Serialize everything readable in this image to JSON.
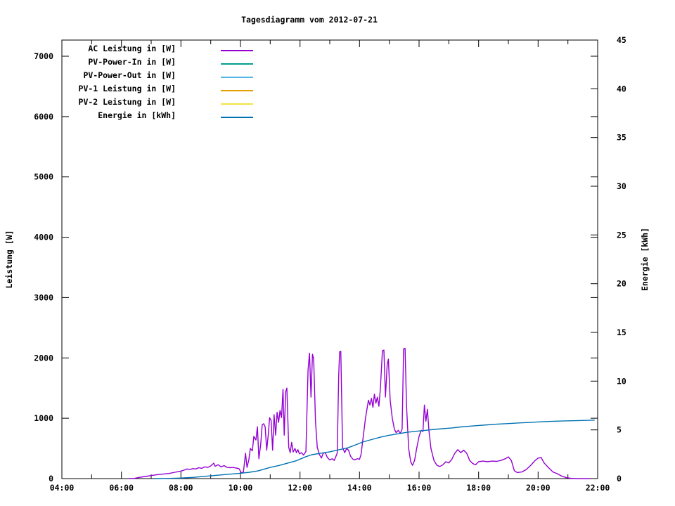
{
  "chart_data": {
    "type": "line",
    "title": "Tagesdiagramm vom 2012-07-21",
    "ylabel": "Leistung [W]",
    "y2label": "Energie [kWh]",
    "grid": false,
    "legend_position": "top-left-inside",
    "ylim": [
      0,
      7268
    ],
    "y2lim": [
      0,
      45
    ],
    "xlim_hours": [
      4,
      22
    ],
    "yticks": [
      0,
      1000,
      2000,
      3000,
      4000,
      5000,
      6000,
      7000
    ],
    "y2ticks": [
      0,
      5,
      10,
      15,
      20,
      25,
      30,
      35,
      40,
      45
    ],
    "xticks": [
      {
        "t": 4,
        "label": "04:00"
      },
      {
        "t": 6,
        "label": "06:00"
      },
      {
        "t": 8,
        "label": "08:00"
      },
      {
        "t": 10,
        "label": "10:00"
      },
      {
        "t": 12,
        "label": "12:00"
      },
      {
        "t": 14,
        "label": "14:00"
      },
      {
        "t": 16,
        "label": "16:00"
      },
      {
        "t": 18,
        "label": "18:00"
      },
      {
        "t": 20,
        "label": "20:00"
      },
      {
        "t": 22,
        "label": "22:00"
      }
    ],
    "xminor": [
      5,
      7,
      9,
      11,
      13,
      15,
      17,
      19,
      21
    ],
    "series": [
      {
        "name": "AC Leistung in [W]",
        "color": "#9400d3",
        "axis": "y1",
        "points": [
          [
            6.25,
            0
          ],
          [
            6.45,
            5
          ],
          [
            6.6,
            20
          ],
          [
            6.8,
            35
          ],
          [
            7.0,
            50
          ],
          [
            7.2,
            65
          ],
          [
            7.4,
            75
          ],
          [
            7.6,
            85
          ],
          [
            7.8,
            105
          ],
          [
            8.0,
            125
          ],
          [
            8.1,
            140
          ],
          [
            8.2,
            160
          ],
          [
            8.3,
            150
          ],
          [
            8.4,
            165
          ],
          [
            8.5,
            160
          ],
          [
            8.6,
            180
          ],
          [
            8.7,
            170
          ],
          [
            8.8,
            195
          ],
          [
            8.9,
            185
          ],
          [
            9.0,
            210
          ],
          [
            9.1,
            255
          ],
          [
            9.15,
            205
          ],
          [
            9.25,
            230
          ],
          [
            9.35,
            195
          ],
          [
            9.45,
            215
          ],
          [
            9.55,
            185
          ],
          [
            9.65,
            180
          ],
          [
            9.75,
            185
          ],
          [
            9.85,
            175
          ],
          [
            9.95,
            165
          ],
          [
            10.03,
            95
          ],
          [
            10.1,
            110
          ],
          [
            10.17,
            420
          ],
          [
            10.22,
            185
          ],
          [
            10.28,
            310
          ],
          [
            10.33,
            500
          ],
          [
            10.4,
            460
          ],
          [
            10.45,
            700
          ],
          [
            10.52,
            640
          ],
          [
            10.57,
            860
          ],
          [
            10.62,
            330
          ],
          [
            10.68,
            570
          ],
          [
            10.73,
            890
          ],
          [
            10.78,
            910
          ],
          [
            10.83,
            860
          ],
          [
            10.88,
            470
          ],
          [
            10.93,
            710
          ],
          [
            10.98,
            1010
          ],
          [
            11.03,
            960
          ],
          [
            11.08,
            470
          ],
          [
            11.13,
            1060
          ],
          [
            11.18,
            720
          ],
          [
            11.23,
            1100
          ],
          [
            11.28,
            930
          ],
          [
            11.33,
            1130
          ],
          [
            11.38,
            1010
          ],
          [
            11.43,
            1480
          ],
          [
            11.47,
            720
          ],
          [
            11.52,
            1440
          ],
          [
            11.56,
            1500
          ],
          [
            11.62,
            520
          ],
          [
            11.67,
            430
          ],
          [
            11.72,
            600
          ],
          [
            11.77,
            440
          ],
          [
            11.83,
            500
          ],
          [
            11.88,
            430
          ],
          [
            11.93,
            480
          ],
          [
            11.98,
            410
          ],
          [
            12.05,
            430
          ],
          [
            12.12,
            390
          ],
          [
            12.2,
            450
          ],
          [
            12.27,
            1800
          ],
          [
            12.32,
            2080
          ],
          [
            12.37,
            1350
          ],
          [
            12.42,
            2060
          ],
          [
            12.46,
            1990
          ],
          [
            12.52,
            950
          ],
          [
            12.58,
            520
          ],
          [
            12.65,
            400
          ],
          [
            12.72,
            340
          ],
          [
            12.78,
            420
          ],
          [
            12.85,
            430
          ],
          [
            12.92,
            350
          ],
          [
            13.0,
            310
          ],
          [
            13.08,
            330
          ],
          [
            13.15,
            300
          ],
          [
            13.25,
            420
          ],
          [
            13.3,
            1700
          ],
          [
            13.33,
            2100
          ],
          [
            13.37,
            2110
          ],
          [
            13.43,
            520
          ],
          [
            13.5,
            430
          ],
          [
            13.57,
            500
          ],
          [
            13.63,
            470
          ],
          [
            13.7,
            370
          ],
          [
            13.78,
            320
          ],
          [
            13.85,
            310
          ],
          [
            13.92,
            330
          ],
          [
            14.0,
            320
          ],
          [
            14.05,
            400
          ],
          [
            14.1,
            600
          ],
          [
            14.15,
            800
          ],
          [
            14.2,
            1000
          ],
          [
            14.25,
            1150
          ],
          [
            14.3,
            1300
          ],
          [
            14.35,
            1220
          ],
          [
            14.4,
            1330
          ],
          [
            14.45,
            1180
          ],
          [
            14.5,
            1400
          ],
          [
            14.55,
            1250
          ],
          [
            14.6,
            1350
          ],
          [
            14.65,
            1200
          ],
          [
            14.7,
            1500
          ],
          [
            14.77,
            2120
          ],
          [
            14.82,
            2130
          ],
          [
            14.87,
            1350
          ],
          [
            14.93,
            1900
          ],
          [
            14.97,
            1980
          ],
          [
            15.03,
            1300
          ],
          [
            15.1,
            1000
          ],
          [
            15.17,
            820
          ],
          [
            15.23,
            760
          ],
          [
            15.3,
            800
          ],
          [
            15.37,
            750
          ],
          [
            15.43,
            820
          ],
          [
            15.48,
            2150
          ],
          [
            15.53,
            2160
          ],
          [
            15.58,
            1200
          ],
          [
            15.65,
            500
          ],
          [
            15.72,
            280
          ],
          [
            15.78,
            220
          ],
          [
            15.85,
            300
          ],
          [
            15.92,
            500
          ],
          [
            16.0,
            700
          ],
          [
            16.07,
            800
          ],
          [
            16.13,
            780
          ],
          [
            16.18,
            1220
          ],
          [
            16.23,
            950
          ],
          [
            16.28,
            1150
          ],
          [
            16.33,
            800
          ],
          [
            16.4,
            500
          ],
          [
            16.5,
            300
          ],
          [
            16.6,
            220
          ],
          [
            16.7,
            200
          ],
          [
            16.8,
            230
          ],
          [
            16.9,
            280
          ],
          [
            17.0,
            260
          ],
          [
            17.1,
            320
          ],
          [
            17.2,
            420
          ],
          [
            17.3,
            480
          ],
          [
            17.4,
            430
          ],
          [
            17.5,
            470
          ],
          [
            17.6,
            420
          ],
          [
            17.7,
            300
          ],
          [
            17.8,
            250
          ],
          [
            17.9,
            230
          ],
          [
            18.0,
            280
          ],
          [
            18.15,
            290
          ],
          [
            18.3,
            280
          ],
          [
            18.45,
            290
          ],
          [
            18.6,
            285
          ],
          [
            18.75,
            300
          ],
          [
            18.9,
            330
          ],
          [
            19.0,
            360
          ],
          [
            19.1,
            300
          ],
          [
            19.2,
            130
          ],
          [
            19.3,
            100
          ],
          [
            19.45,
            110
          ],
          [
            19.6,
            150
          ],
          [
            19.75,
            220
          ],
          [
            19.9,
            300
          ],
          [
            20.0,
            340
          ],
          [
            20.1,
            350
          ],
          [
            20.2,
            260
          ],
          [
            20.35,
            180
          ],
          [
            20.5,
            110
          ],
          [
            20.65,
            80
          ],
          [
            20.8,
            40
          ],
          [
            20.95,
            15
          ],
          [
            21.1,
            5
          ],
          [
            21.3,
            0
          ],
          [
            21.75,
            0
          ]
        ]
      },
      {
        "name": "PV-Power-In in [W]",
        "color": "#009e8e",
        "axis": "y1",
        "points": []
      },
      {
        "name": "PV-Power-Out in [W]",
        "color": "#56b4e9",
        "axis": "y1",
        "points": []
      },
      {
        "name": "PV-1 Leistung in [W]",
        "color": "#e69f00",
        "axis": "y1",
        "points": []
      },
      {
        "name": "PV-2 Leistung in [W]",
        "color": "#f0e442",
        "axis": "y1",
        "points": []
      },
      {
        "name": "Energie in [kWh]",
        "color": "#0072b2",
        "axis": "y2",
        "points": [
          [
            7.1,
            0
          ],
          [
            7.6,
            0.02
          ],
          [
            8.0,
            0.06
          ],
          [
            8.4,
            0.12
          ],
          [
            8.7,
            0.2
          ],
          [
            9.0,
            0.28
          ],
          [
            9.5,
            0.42
          ],
          [
            10.0,
            0.55
          ],
          [
            10.3,
            0.65
          ],
          [
            10.6,
            0.8
          ],
          [
            11.0,
            1.15
          ],
          [
            11.3,
            1.35
          ],
          [
            11.6,
            1.6
          ],
          [
            11.9,
            1.85
          ],
          [
            12.0,
            2.0
          ],
          [
            12.2,
            2.25
          ],
          [
            12.4,
            2.45
          ],
          [
            12.7,
            2.6
          ],
          [
            13.0,
            2.75
          ],
          [
            13.3,
            2.95
          ],
          [
            13.6,
            3.15
          ],
          [
            13.9,
            3.5
          ],
          [
            14.1,
            3.75
          ],
          [
            14.4,
            4.0
          ],
          [
            14.7,
            4.25
          ],
          [
            15.0,
            4.45
          ],
          [
            15.3,
            4.6
          ],
          [
            15.6,
            4.75
          ],
          [
            15.9,
            4.85
          ],
          [
            16.2,
            4.95
          ],
          [
            16.5,
            5.05
          ],
          [
            16.8,
            5.12
          ],
          [
            17.1,
            5.2
          ],
          [
            17.4,
            5.3
          ],
          [
            17.7,
            5.38
          ],
          [
            18.0,
            5.45
          ],
          [
            18.3,
            5.52
          ],
          [
            18.6,
            5.58
          ],
          [
            19.0,
            5.65
          ],
          [
            19.4,
            5.72
          ],
          [
            19.8,
            5.78
          ],
          [
            20.2,
            5.85
          ],
          [
            20.6,
            5.89
          ],
          [
            21.0,
            5.93
          ],
          [
            21.4,
            5.96
          ],
          [
            21.9,
            6.0
          ]
        ]
      }
    ]
  }
}
